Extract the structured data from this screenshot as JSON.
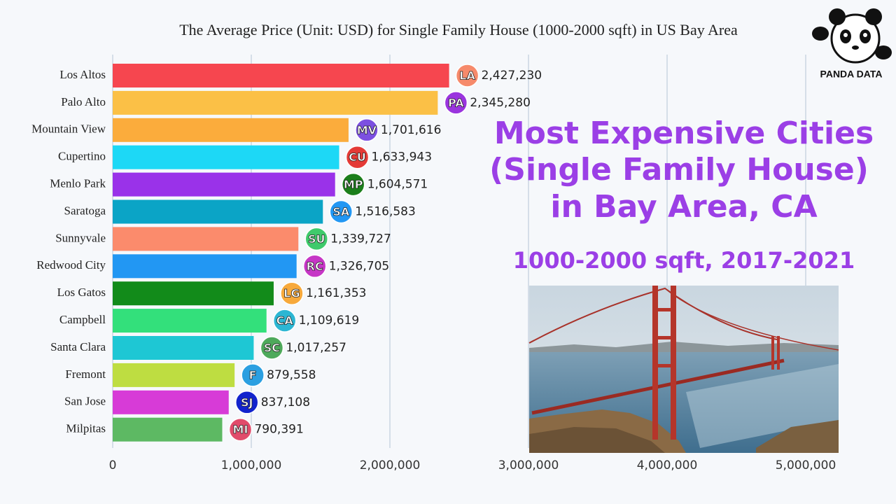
{
  "chart_data": {
    "type": "bar",
    "orientation": "horizontal",
    "title": "The Average Price (Unit: USD) for Single Family House (1000-2000 sqft) in US Bay Area",
    "categories": [
      "Los Altos",
      "Palo Alto",
      "Mountain View",
      "Cupertino",
      "Menlo Park",
      "Saratoga",
      "Sunnyvale",
      "Redwood City",
      "Los Gatos",
      "Campbell",
      "Santa Clara",
      "Fremont",
      "San Jose",
      "Milpitas"
    ],
    "values": [
      2427230,
      2345280,
      1701616,
      1633943,
      1604571,
      1516583,
      1339727,
      1326705,
      1161353,
      1109619,
      1017257,
      879558,
      837108,
      790391
    ],
    "value_labels": [
      "2,427,230",
      "2,345,280",
      "1,701,616",
      "1,633,943",
      "1,604,571",
      "1,516,583",
      "1,339,727",
      "1,326,705",
      "1,161,353",
      "1,109,619",
      "1,017,257",
      "879,558",
      "837,108",
      "790,391"
    ],
    "colors": [
      "#f6464f",
      "#fbc046",
      "#fbac3c",
      "#1dd8f6",
      "#9a32e9",
      "#0ba4c6",
      "#fb8b6c",
      "#2297f3",
      "#128b1a",
      "#33e07b",
      "#1ec7d4",
      "#bedd41",
      "#d73bd7",
      "#5db963"
    ],
    "badges": [
      "LA",
      "PA",
      "MV",
      "CU",
      "MP",
      "SA",
      "SU",
      "RC",
      "LG",
      "CA",
      "SC",
      "F",
      "SJ",
      "MI"
    ],
    "badge_colors": [
      "#f68a6b",
      "#9a34de",
      "#7c50e1",
      "#e43a36",
      "#1b7e1b",
      "#2297f3",
      "#3fca6b",
      "#c636c6",
      "#f7a93b",
      "#2cb6d3",
      "#4ea95b",
      "#2b9fe1",
      "#1223cd",
      "#e14b6b"
    ],
    "xlim": [
      0,
      5000000
    ],
    "xticks": [
      0,
      {
        "value": 1000000,
        "label": "1,000,000"
      },
      {
        "value": 2000000,
        "label": "2,000,000"
      },
      {
        "value": 3000000,
        "label": "3,000,000"
      },
      {
        "value": 4000000,
        "label": "4,000,000"
      },
      {
        "value": 5000000,
        "label": "5,000,000"
      }
    ],
    "grid": true
  },
  "overlay": {
    "headline": [
      "Most Expensive Cities",
      "(Single Family House)",
      "in Bay Area, CA"
    ],
    "subheadline": "1000-2000 sqft, 2017-2021",
    "logo": "PANDA DATA"
  }
}
